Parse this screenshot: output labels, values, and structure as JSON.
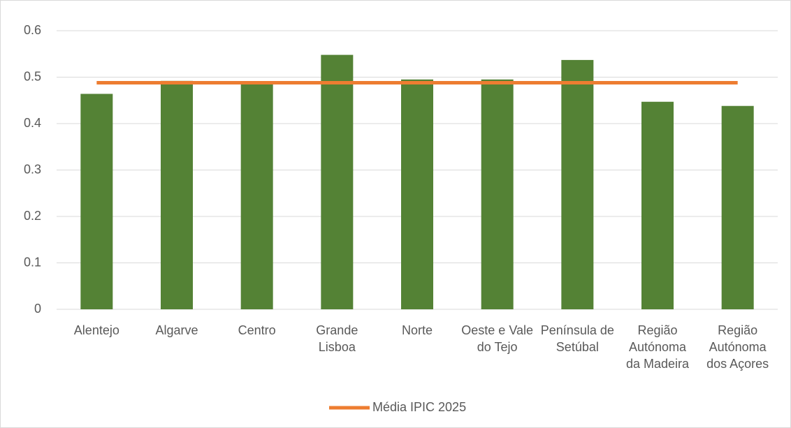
{
  "chart_data": {
    "type": "bar",
    "categories": [
      "Alentejo",
      "Algarve",
      "Centro",
      "Grande Lisboa",
      "Norte",
      "Oeste e Vale do Tejo",
      "Península de Setúbal",
      "Região Autónoma da Madeira",
      "Região Autónoma dos Açores"
    ],
    "values": [
      0.464,
      0.492,
      0.49,
      0.548,
      0.495,
      0.495,
      0.537,
      0.447,
      0.438
    ],
    "color": "#548235",
    "series": [
      {
        "name": "Média IPIC 2025",
        "color": "#ED7D31",
        "values": [
          0.488,
          0.488,
          0.488,
          0.488,
          0.488,
          0.488,
          0.488,
          0.488,
          0.488
        ]
      }
    ],
    "ylim": [
      0,
      0.6
    ],
    "yticks": [
      0,
      0.1,
      0.2,
      0.3,
      0.4,
      0.5,
      0.6
    ],
    "grid": true,
    "legend": "bottom"
  }
}
